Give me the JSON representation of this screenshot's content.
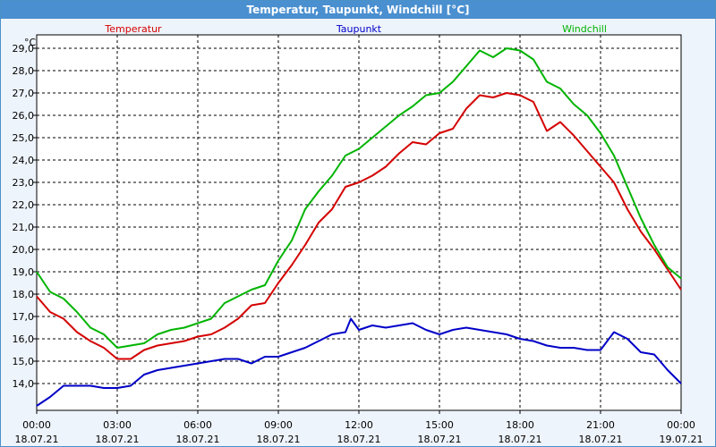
{
  "window": {
    "title": "Temperatur, Taupunkt, Windchill [°C]"
  },
  "chart_data": {
    "type": "line",
    "ylabel": "°C",
    "ylim": [
      12.8,
      29.6
    ],
    "yticks": [
      14.0,
      15.0,
      16.0,
      17.0,
      18.0,
      19.0,
      20.0,
      21.0,
      22.0,
      23.0,
      24.0,
      25.0,
      26.0,
      27.0,
      28.0,
      29.0
    ],
    "ytick_labels": [
      "14,0",
      "15,0",
      "16,0",
      "17,0",
      "18,0",
      "19,0",
      "20,0",
      "21,0",
      "22,0",
      "23,0",
      "24,0",
      "25,0",
      "26,0",
      "27,0",
      "28,0",
      "29,0"
    ],
    "xlim": [
      0,
      24
    ],
    "xticks": [
      0,
      3,
      6,
      9,
      12,
      15,
      18,
      21,
      24
    ],
    "xtick_times": [
      "00:00",
      "03:00",
      "06:00",
      "09:00",
      "12:00",
      "15:00",
      "18:00",
      "21:00",
      "00:00"
    ],
    "xtick_dates": [
      "18.07.21",
      "18.07.21",
      "18.07.21",
      "18.07.21",
      "18.07.21",
      "18.07.21",
      "18.07.21",
      "18.07.21",
      "19.07.21"
    ],
    "grid": true,
    "legend_position": "top",
    "series": [
      {
        "name": "Temperatur",
        "color": "#d40000",
        "x": [
          0,
          0.5,
          1,
          1.5,
          2,
          2.5,
          3,
          3.5,
          4,
          4.5,
          5,
          5.5,
          6,
          6.5,
          7,
          7.5,
          8,
          8.5,
          9,
          9.5,
          10,
          10.5,
          11,
          11.5,
          12,
          12.5,
          13,
          13.5,
          14,
          14.5,
          15,
          15.5,
          16,
          16.5,
          17,
          17.5,
          18,
          18.5,
          19,
          19.5,
          20,
          20.5,
          21,
          21.5,
          22,
          22.5,
          23,
          23.5,
          24
        ],
        "values": [
          17.9,
          17.2,
          16.9,
          16.3,
          15.9,
          15.6,
          15.1,
          15.1,
          15.5,
          15.7,
          15.8,
          15.9,
          16.1,
          16.2,
          16.5,
          16.9,
          17.5,
          17.6,
          18.5,
          19.3,
          20.2,
          21.2,
          21.8,
          22.8,
          23.0,
          23.3,
          23.7,
          24.3,
          24.8,
          24.7,
          25.2,
          25.4,
          26.3,
          26.9,
          26.8,
          27.0,
          26.9,
          26.6,
          25.3,
          25.7,
          25.1,
          24.4,
          23.7,
          23.0,
          21.8,
          20.8,
          20.0,
          19.1,
          18.2
        ]
      },
      {
        "name": "Taupunkt",
        "color": "#0000c8",
        "x": [
          0,
          0.5,
          1,
          1.5,
          2,
          2.5,
          3,
          3.5,
          4,
          4.5,
          5,
          5.5,
          6,
          6.5,
          7,
          7.5,
          8,
          8.5,
          9,
          9.5,
          10,
          10.5,
          11,
          11.5,
          11.7,
          12,
          12.5,
          13,
          13.5,
          14,
          14.5,
          15,
          15.5,
          16,
          16.5,
          17,
          17.5,
          18,
          18.5,
          19,
          19.5,
          20,
          20.5,
          21,
          21.5,
          22,
          22.5,
          23,
          23.5,
          24
        ],
        "values": [
          13.0,
          13.4,
          13.9,
          13.9,
          13.9,
          13.8,
          13.8,
          13.9,
          14.4,
          14.6,
          14.7,
          14.8,
          14.9,
          15.0,
          15.1,
          15.1,
          14.9,
          15.2,
          15.2,
          15.4,
          15.6,
          15.9,
          16.2,
          16.3,
          16.9,
          16.4,
          16.6,
          16.5,
          16.6,
          16.7,
          16.4,
          16.2,
          16.4,
          16.5,
          16.4,
          16.3,
          16.2,
          16.0,
          15.9,
          15.7,
          15.6,
          15.6,
          15.5,
          15.5,
          16.3,
          16.0,
          15.4,
          15.3,
          14.6,
          14.0
        ]
      },
      {
        "name": "Windchill",
        "color": "#00b400",
        "x": [
          0,
          0.5,
          1,
          1.5,
          2,
          2.5,
          3,
          3.5,
          4,
          4.5,
          5,
          5.5,
          6,
          6.5,
          7,
          7.5,
          8,
          8.5,
          9,
          9.5,
          10,
          10.5,
          11,
          11.5,
          12,
          12.5,
          13,
          13.5,
          14,
          14.5,
          15,
          15.5,
          16,
          16.5,
          17,
          17.5,
          18,
          18.5,
          19,
          19.5,
          20,
          20.5,
          21,
          21.5,
          22,
          22.5,
          23,
          23.5,
          24
        ],
        "values": [
          19.0,
          18.1,
          17.8,
          17.2,
          16.5,
          16.2,
          15.6,
          15.7,
          15.8,
          16.2,
          16.4,
          16.5,
          16.7,
          16.9,
          17.6,
          17.9,
          18.2,
          18.4,
          19.5,
          20.4,
          21.8,
          22.6,
          23.3,
          24.2,
          24.5,
          25.0,
          25.5,
          26.0,
          26.4,
          26.9,
          27.0,
          27.5,
          28.2,
          28.9,
          28.6,
          29.0,
          28.9,
          28.5,
          27.5,
          27.2,
          26.5,
          26.0,
          25.2,
          24.2,
          22.8,
          21.4,
          20.2,
          19.2,
          18.7
        ]
      }
    ]
  }
}
